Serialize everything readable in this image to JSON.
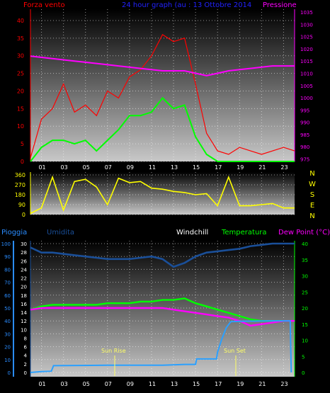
{
  "header": {
    "left_label": "Forza vento",
    "title": "24 hour graph (au : 13 Ottobre 2014",
    "right_label": "Pressione"
  },
  "bottom_header": {
    "pioggia": "Pioggia",
    "umidita": "Umidita",
    "windchill": "Windchill",
    "temperatura": "Temperatura",
    "dewpoint": "Dew Point (°C)"
  },
  "compass_letters": [
    "N",
    "W",
    "S",
    "E",
    "N"
  ],
  "annotations": {
    "sunrise": "Sun Rise",
    "sunset": "Sun Set"
  },
  "colors": {
    "wind_gust": "#ff0000",
    "wind_avg": "#00ff00",
    "pressure": "#ff00ff",
    "direction": "#ffff00",
    "rain": "#2aa0ff",
    "humidity": "#1a4f99",
    "temperature": "#00ff00",
    "dewpoint": "#ff00ff",
    "axis_left": "#ff0000",
    "axis_pressure": "#ff00ff",
    "axis_rain": "#2a8cff",
    "axis_temp": "#00ff00"
  },
  "chart_data": [
    {
      "type": "line",
      "name": "wind-pressure",
      "x_ticks": [
        "01",
        "03",
        "05",
        "07",
        "09",
        "11",
        "13",
        "15",
        "17",
        "19",
        "21",
        "23"
      ],
      "xlim": [
        0,
        24
      ],
      "y_left_ticks": [
        "0",
        "5",
        "10",
        "15",
        "20",
        "25",
        "30",
        "35",
        "40"
      ],
      "ylim_left": [
        0,
        42
      ],
      "y_right_ticks": [
        "975",
        "980",
        "985",
        "990",
        "995",
        "1000",
        "1005",
        "1010",
        "1015",
        "1020",
        "1025",
        "1030",
        "1035"
      ],
      "ylim_right": [
        974,
        1035
      ],
      "series": [
        {
          "key": "gust",
          "hours": [
            0,
            1,
            2,
            3,
            4,
            5,
            6,
            7,
            8,
            9,
            10,
            11,
            12,
            13,
            14,
            15,
            16,
            17,
            18,
            19,
            20,
            21,
            22,
            23,
            24
          ],
          "values": [
            1,
            12,
            15,
            22,
            14,
            16,
            13,
            20,
            18,
            24,
            26,
            30,
            36,
            34,
            35,
            22,
            8,
            3,
            2,
            4,
            3,
            2,
            3,
            4,
            3
          ]
        },
        {
          "key": "avg",
          "hours": [
            0,
            1,
            2,
            3,
            4,
            5,
            6,
            7,
            8,
            9,
            10,
            11,
            12,
            13,
            14,
            15,
            16,
            17,
            18,
            19,
            20,
            21,
            22,
            23,
            24
          ],
          "values": [
            0,
            4,
            6,
            6,
            5,
            6,
            3,
            6,
            9,
            13,
            13,
            14,
            18,
            15,
            16,
            7,
            2,
            0,
            0,
            0,
            0,
            0,
            0,
            0,
            0
          ]
        },
        {
          "key": "pressure",
          "hours": [
            0,
            2,
            4,
            6,
            8,
            10,
            12,
            14,
            16,
            17,
            18,
            20,
            22,
            24
          ],
          "values": [
            1017,
            1016,
            1015,
            1014,
            1013,
            1012,
            1011,
            1011,
            1009,
            1010,
            1011,
            1012,
            1013,
            1013
          ]
        }
      ]
    },
    {
      "type": "line",
      "name": "wind-direction",
      "x_ticks": [
        "01",
        "03",
        "05",
        "07",
        "09",
        "11",
        "13",
        "15",
        "17",
        "19",
        "21",
        "23"
      ],
      "y_ticks": [
        "0",
        "90",
        "180",
        "270",
        "360"
      ],
      "ylim": [
        0,
        360
      ],
      "series": [
        {
          "key": "direction",
          "hours": [
            0,
            1,
            2,
            3,
            4,
            5,
            6,
            7,
            8,
            9,
            10,
            11,
            12,
            13,
            14,
            15,
            16,
            17,
            18,
            19,
            20,
            21,
            22,
            23,
            24
          ],
          "values": [
            10,
            60,
            340,
            40,
            300,
            320,
            250,
            90,
            330,
            290,
            300,
            240,
            230,
            210,
            200,
            180,
            190,
            80,
            340,
            80,
            80,
            90,
            100,
            60,
            60
          ]
        }
      ]
    },
    {
      "type": "line",
      "name": "rain-humidity-temperature",
      "x_ticks": [
        "01",
        "03",
        "05",
        "07",
        "09",
        "11",
        "13",
        "15",
        "17",
        "19",
        "21",
        "23"
      ],
      "y_rain_ticks": [
        "0",
        "2",
        "4",
        "6",
        "8",
        "10",
        "12",
        "14"
      ],
      "y_humidity_ticks": [
        "0",
        "10",
        "20",
        "30",
        "40",
        "50",
        "60",
        "70",
        "80",
        "90",
        "100"
      ],
      "y_temp_left_ticks": [
        "0",
        "2",
        "4",
        "6",
        "8",
        "10",
        "12",
        "14",
        "16",
        "18",
        "20",
        "22",
        "24",
        "26",
        "28",
        "30"
      ],
      "y_temp_right_ticks": [
        "0",
        "5",
        "10",
        "15",
        "20",
        "25",
        "30",
        "35",
        "40"
      ],
      "ylim_temp_right": [
        0,
        40
      ],
      "series": [
        {
          "key": "humidity",
          "hours": [
            0,
            1,
            2,
            3,
            4,
            5,
            6,
            7,
            8,
            9,
            10,
            11,
            12,
            13,
            14,
            15,
            16,
            17,
            18,
            19,
            20,
            21,
            22,
            23,
            24
          ],
          "values": [
            97,
            93,
            93,
            92,
            91,
            90,
            89,
            88,
            88,
            88,
            89,
            90,
            88,
            82,
            85,
            90,
            93,
            94,
            95,
            96,
            98,
            99,
            100,
            100,
            100
          ]
        },
        {
          "key": "temperature",
          "hours": [
            0,
            1,
            2,
            3,
            4,
            5,
            6,
            7,
            8,
            9,
            10,
            11,
            12,
            13,
            14,
            15,
            16,
            17,
            18,
            19,
            20,
            21,
            22,
            23,
            24
          ],
          "values": [
            19.5,
            20.5,
            21,
            21,
            21,
            21,
            21,
            21.5,
            21.5,
            21.5,
            22,
            22,
            22.5,
            22.5,
            23,
            21.5,
            20.5,
            19.5,
            18.5,
            17.5,
            16.5,
            16,
            16,
            16,
            16
          ]
        },
        {
          "key": "dewpoint",
          "hours": [
            0,
            1,
            2,
            3,
            4,
            5,
            6,
            7,
            8,
            9,
            10,
            11,
            12,
            13,
            14,
            15,
            16,
            17,
            18,
            19,
            20,
            21,
            22,
            23,
            24
          ],
          "values": [
            19.5,
            20,
            20,
            20,
            20,
            20,
            20,
            20,
            20,
            20,
            20,
            20,
            20,
            19.5,
            19,
            18.5,
            18,
            17.5,
            17,
            16,
            14.5,
            15,
            15.5,
            16,
            16
          ]
        },
        {
          "key": "rain",
          "hours": [
            0,
            1,
            1.9,
            2.1,
            7,
            12,
            14,
            15,
            15.1,
            16.9,
            17,
            17.4,
            17.8,
            18.2,
            19,
            22,
            23.6,
            23.7
          ],
          "values": [
            0,
            0.2,
            0.3,
            1.6,
            1.7,
            1.7,
            1.9,
            1.9,
            3.2,
            3.2,
            4.8,
            8,
            10.6,
            12,
            12.1,
            12.2,
            12.2,
            0
          ]
        }
      ]
    }
  ]
}
